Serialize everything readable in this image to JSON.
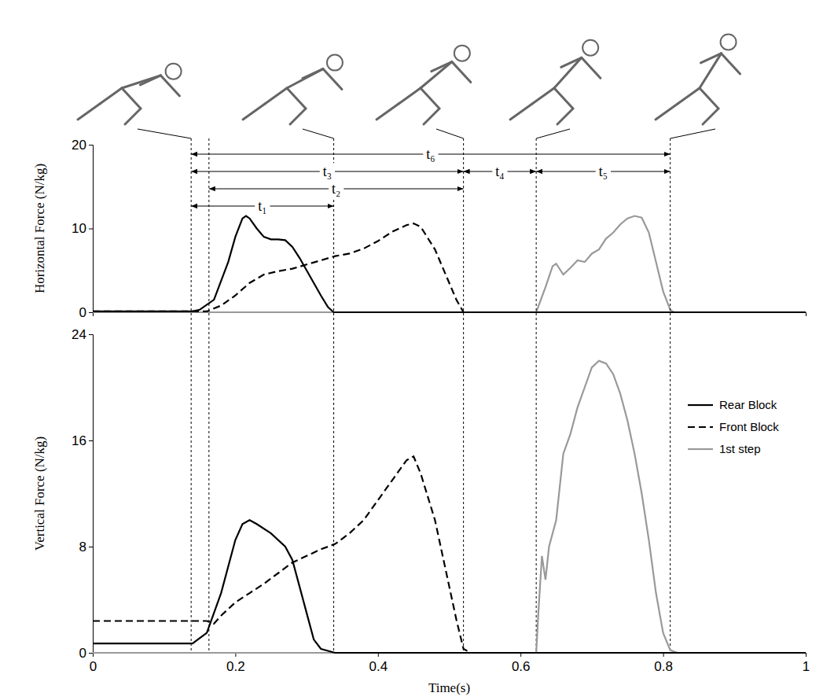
{
  "chart_data": [
    {
      "type": "line",
      "ylabel": "Horizontal Force (N/kg)",
      "xlim": [
        0,
        1
      ],
      "ylim": [
        0,
        20
      ],
      "yticks": [
        0,
        10,
        20
      ],
      "tick_labels": "y",
      "series": [
        {
          "color": "#000000",
          "line_style": "solid",
          "x": [
            0,
            0.1,
            0.14,
            0.15,
            0.17,
            0.19,
            0.2,
            0.21,
            0.215,
            0.22,
            0.23,
            0.24,
            0.25,
            0.26,
            0.27,
            0.28,
            0.29,
            0.3,
            0.31,
            0.32,
            0.33,
            0.338,
            1
          ],
          "values": [
            0.1,
            0.1,
            0.1,
            0.3,
            1.5,
            6,
            9,
            11.2,
            11.5,
            11.2,
            10,
            9,
            8.7,
            8.7,
            8.6,
            7.8,
            6.5,
            5,
            3.5,
            2,
            0.6,
            0,
            0
          ]
        },
        {
          "color": "#000000",
          "line_style": "dashed",
          "x": [
            0,
            0.16,
            0.18,
            0.2,
            0.22,
            0.24,
            0.26,
            0.28,
            0.3,
            0.32,
            0.34,
            0.36,
            0.38,
            0.4,
            0.42,
            0.44,
            0.45,
            0.46,
            0.48,
            0.5,
            0.51,
            0.52,
            1
          ],
          "values": [
            0.1,
            0.1,
            0.8,
            2,
            3.5,
            4.5,
            4.9,
            5.2,
            5.7,
            6.2,
            6.7,
            7,
            7.6,
            8.5,
            9.6,
            10.4,
            10.6,
            10.2,
            7.5,
            3.5,
            1.5,
            0,
            0
          ]
        },
        {
          "color": "#999999",
          "line_style": "solid",
          "x": [
            0,
            0.622,
            0.635,
            0.645,
            0.65,
            0.66,
            0.67,
            0.68,
            0.69,
            0.7,
            0.71,
            0.72,
            0.73,
            0.74,
            0.75,
            0.76,
            0.77,
            0.78,
            0.79,
            0.8,
            0.81,
            0.815,
            1
          ],
          "values": [
            0,
            0,
            3,
            5.5,
            5.8,
            4.5,
            5.3,
            6.2,
            6,
            7,
            7.5,
            8.8,
            9.5,
            10.5,
            11.2,
            11.5,
            11.3,
            9.5,
            6,
            2.5,
            0.3,
            0,
            0
          ]
        }
      ],
      "annotations": [
        {
          "label": "t₁",
          "x": [
            0.138,
            0.338
          ]
        },
        {
          "label": "t₂",
          "x": [
            0.163,
            0.52
          ]
        },
        {
          "label": "t₃",
          "x": [
            0.138,
            0.52
          ]
        },
        {
          "label": "t₄",
          "x": [
            0.52,
            0.622
          ]
        },
        {
          "label": "t₅",
          "x": [
            0.622,
            0.81
          ]
        },
        {
          "label": "t₆",
          "x": [
            0.138,
            0.81
          ]
        }
      ]
    },
    {
      "type": "line",
      "xlabel": "Time(s)",
      "ylabel": "Vertical Force (N/kg)",
      "xlim": [
        0,
        1
      ],
      "xticks": [
        0,
        0.2,
        0.4,
        0.6,
        0.8,
        1
      ],
      "ylim": [
        0,
        24
      ],
      "yticks": [
        0,
        8,
        16,
        24
      ],
      "legend": "upper right",
      "series": [
        {
          "name": "Rear Block",
          "color": "#000000",
          "line_style": "solid",
          "x": [
            0,
            0.14,
            0.16,
            0.18,
            0.2,
            0.21,
            0.22,
            0.23,
            0.25,
            0.27,
            0.28,
            0.29,
            0.3,
            0.31,
            0.32,
            0.34,
            1
          ],
          "values": [
            0.7,
            0.7,
            1.5,
            4.5,
            8.5,
            9.7,
            10,
            9.7,
            9,
            8,
            7,
            5,
            3,
            1,
            0.3,
            0,
            0
          ]
        },
        {
          "name": "Front Block",
          "color": "#000000",
          "line_style": "dashed",
          "x": [
            0,
            0.16,
            0.17,
            0.18,
            0.2,
            0.22,
            0.24,
            0.26,
            0.28,
            0.3,
            0.32,
            0.34,
            0.36,
            0.38,
            0.4,
            0.42,
            0.44,
            0.45,
            0.46,
            0.48,
            0.5,
            0.51,
            0.52,
            0.53,
            1
          ],
          "values": [
            2.4,
            2.4,
            2.2,
            2.8,
            3.8,
            4.5,
            5.2,
            6,
            6.8,
            7.3,
            7.8,
            8.2,
            9,
            10,
            11.5,
            13,
            14.5,
            14.8,
            13.5,
            10,
            5,
            2.5,
            0.3,
            0,
            0
          ]
        },
        {
          "name": "1st step",
          "color": "#999999",
          "line_style": "solid",
          "x": [
            0,
            0.622,
            0.625,
            0.63,
            0.635,
            0.64,
            0.65,
            0.66,
            0.67,
            0.68,
            0.69,
            0.7,
            0.71,
            0.72,
            0.73,
            0.74,
            0.75,
            0.76,
            0.77,
            0.78,
            0.79,
            0.8,
            0.81,
            0.82,
            1
          ],
          "values": [
            0,
            0,
            3,
            7.3,
            5.5,
            8,
            10,
            15,
            16.5,
            18.5,
            20,
            21.5,
            22,
            21.8,
            21,
            19.5,
            17.5,
            15,
            12,
            8.5,
            4.5,
            1.5,
            0.2,
            0,
            0
          ]
        }
      ]
    }
  ]
}
